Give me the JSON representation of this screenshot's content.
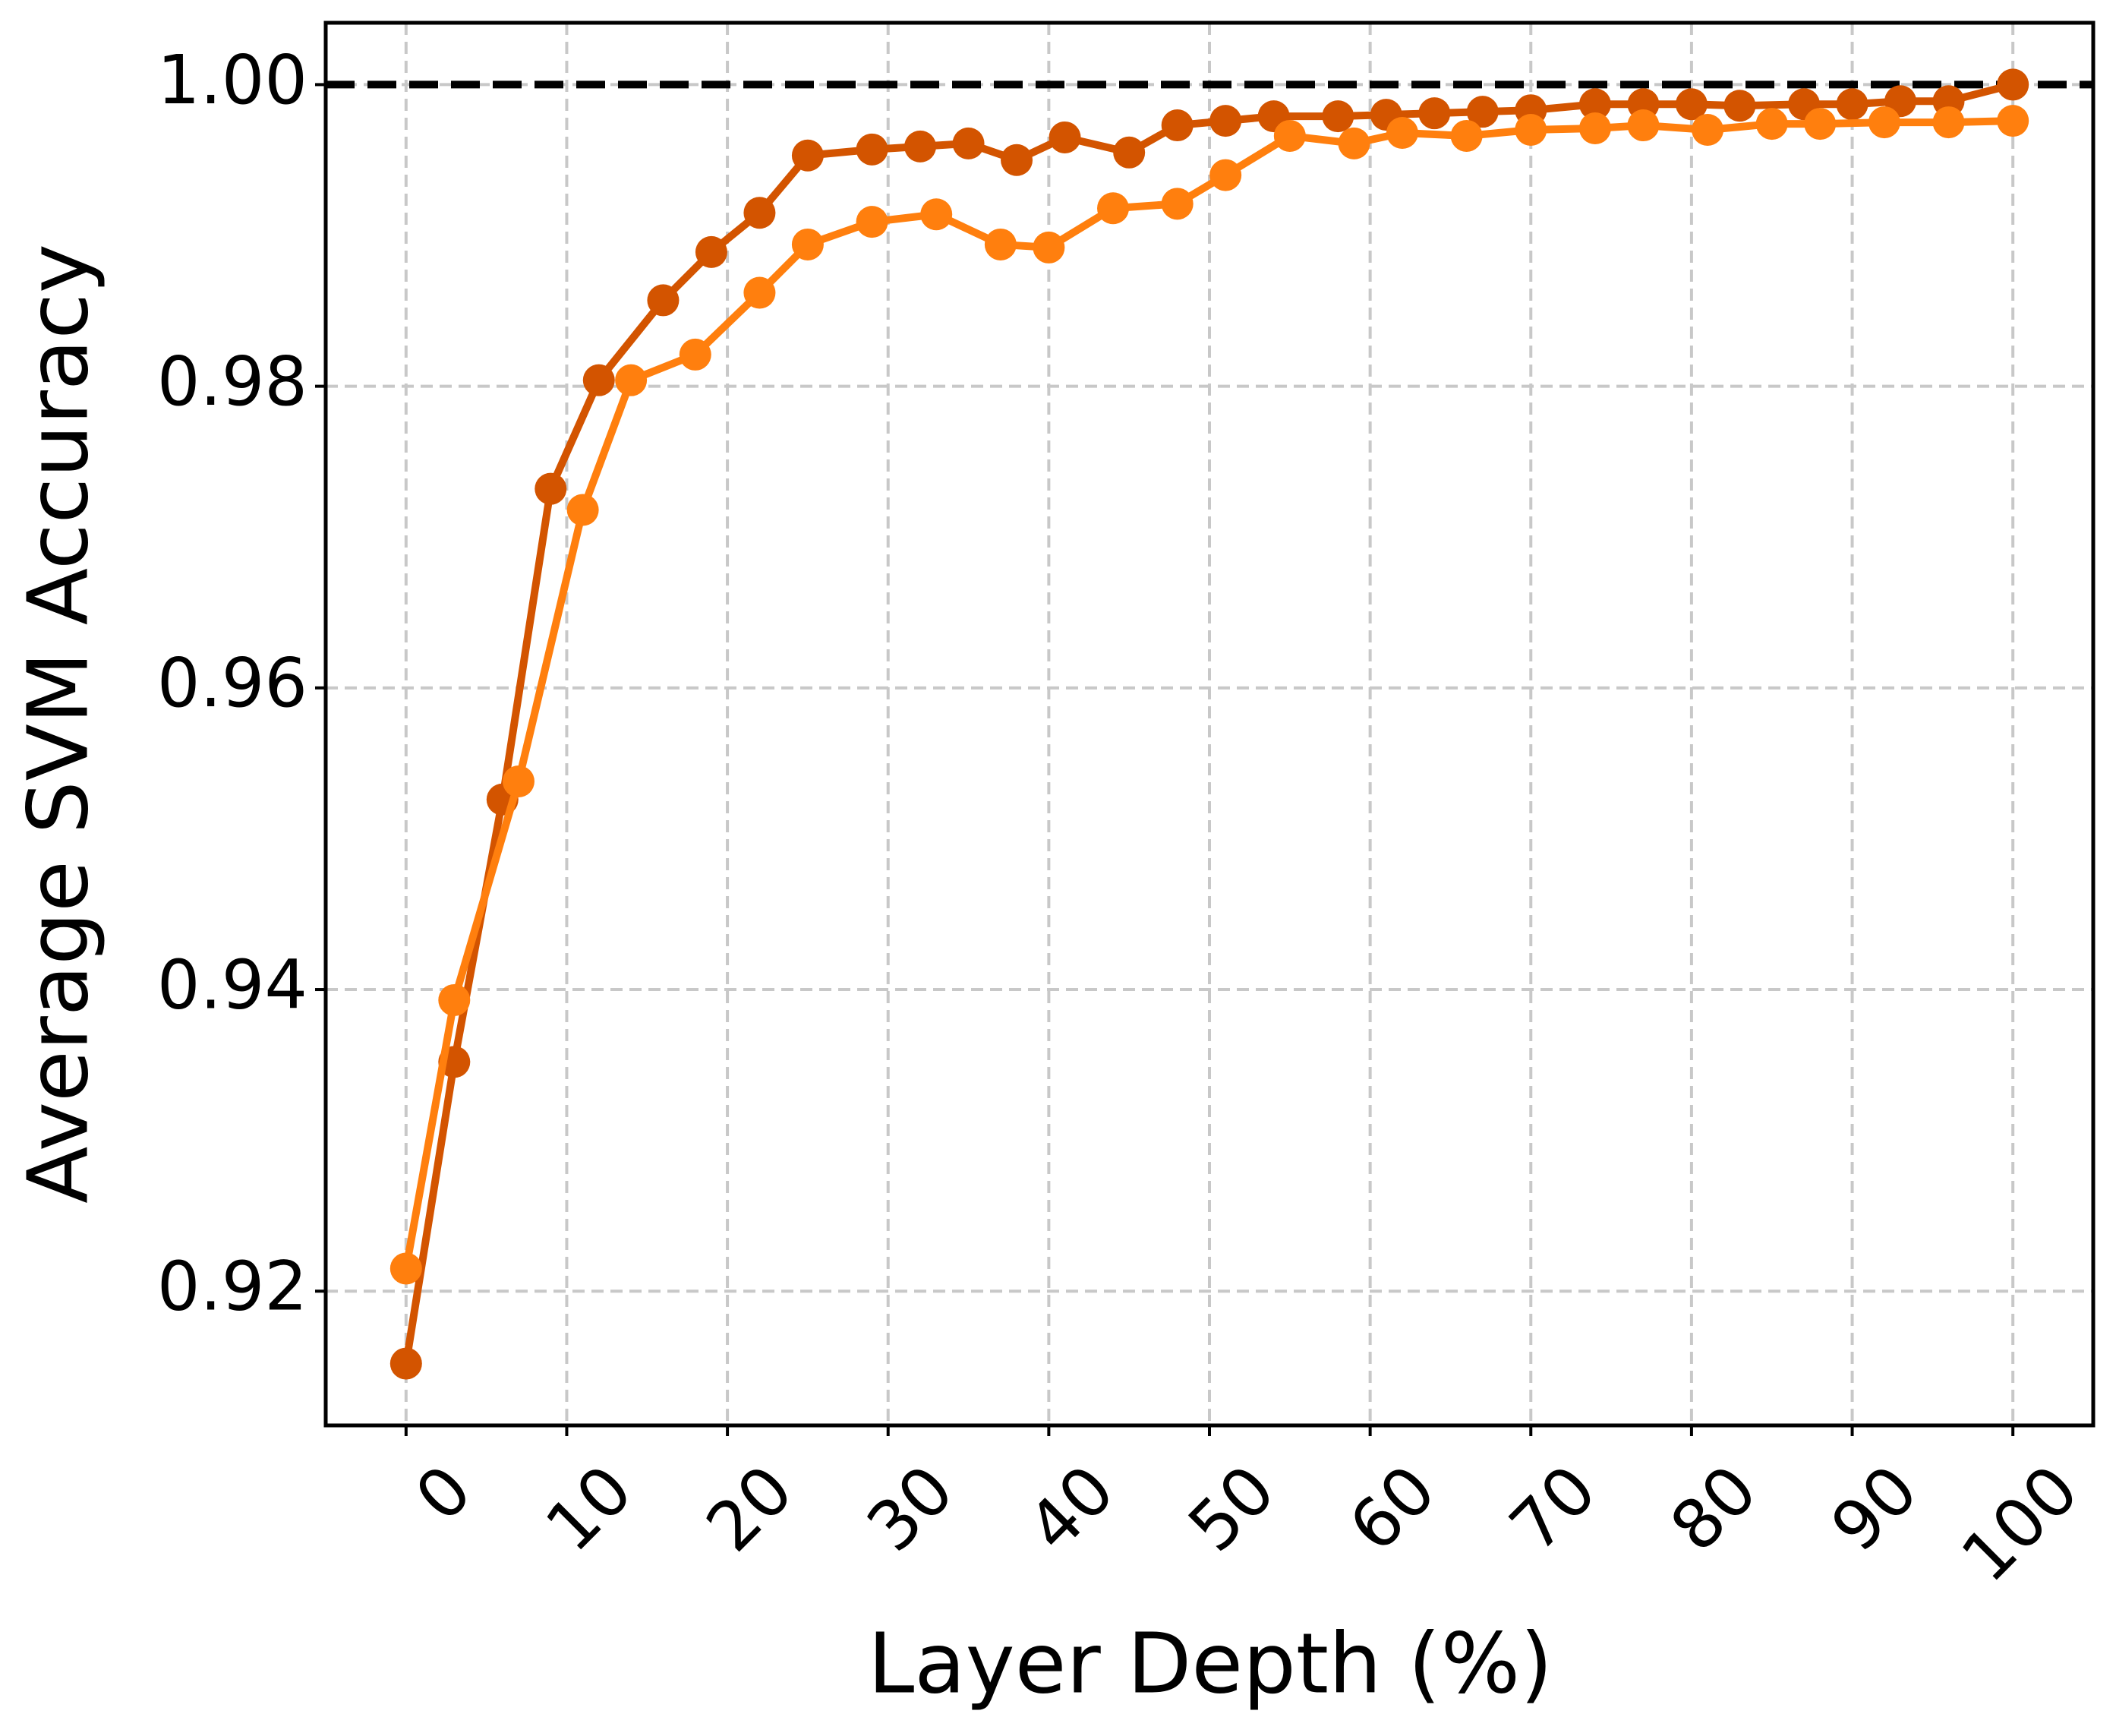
{
  "chart_data": {
    "type": "line",
    "xlabel": "Layer Depth (%)",
    "ylabel": "Average SVM Accuracy",
    "xlim": [
      -5,
      105
    ],
    "ylim": [
      0.9111,
      1.0041
    ],
    "xticks": [
      0,
      10,
      20,
      30,
      40,
      50,
      60,
      70,
      80,
      90,
      100
    ],
    "yticks": [
      {
        "value": 0.92,
        "label": "0.92"
      },
      {
        "value": 0.94,
        "label": "0.94"
      },
      {
        "value": 0.96,
        "label": "0.96"
      },
      {
        "value": 0.98,
        "label": "0.98"
      },
      {
        "value": 1.0,
        "label": "1.00"
      }
    ],
    "grid": true,
    "reference_line": {
      "y": 1.0,
      "color": "#000000"
    },
    "series": [
      {
        "color": "#d35400",
        "x": [
          0,
          3,
          6,
          9,
          12,
          16,
          19,
          22,
          25,
          29,
          32,
          35,
          38,
          41,
          45,
          48,
          51,
          54,
          58,
          61,
          64,
          67,
          70,
          74,
          77,
          80,
          83,
          87,
          90,
          93,
          96,
          100
        ],
        "values": [
          0.9152,
          0.9352,
          0.9526,
          0.9732,
          0.9804,
          0.9857,
          0.9889,
          0.9915,
          0.9953,
          0.9957,
          0.9959,
          0.9961,
          0.995,
          0.9965,
          0.9955,
          0.9973,
          0.9976,
          0.9979,
          0.9979,
          0.998,
          0.9981,
          0.9982,
          0.9983,
          0.9987,
          0.9987,
          0.9987,
          0.9986,
          0.9987,
          0.9987,
          0.9989,
          0.9989,
          1.0
        ]
      },
      {
        "color": "#ff7f0e",
        "x": [
          0,
          3,
          7,
          11,
          14,
          18,
          22,
          25,
          29,
          33,
          37,
          40,
          44,
          48,
          51,
          55,
          59,
          62,
          66,
          70,
          74,
          77,
          81,
          85,
          88,
          92,
          96,
          100
        ],
        "values": [
          0.9215,
          0.9393,
          0.9538,
          0.9718,
          0.9804,
          0.9821,
          0.9862,
          0.9894,
          0.9909,
          0.9914,
          0.9894,
          0.9892,
          0.9918,
          0.9921,
          0.994,
          0.9966,
          0.9961,
          0.9968,
          0.9966,
          0.997,
          0.9971,
          0.9973,
          0.997,
          0.9974,
          0.9974,
          0.9975,
          0.9975,
          0.9976
        ]
      }
    ]
  }
}
